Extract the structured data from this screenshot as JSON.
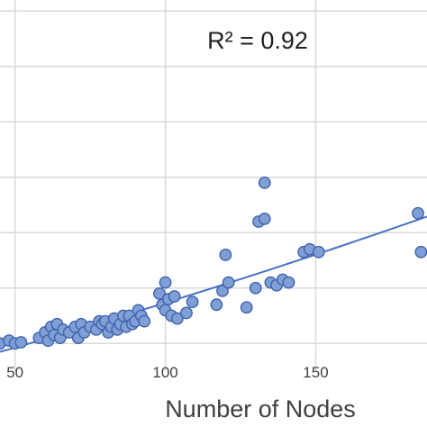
{
  "chart_data": {
    "type": "scatter",
    "xlabel": "Number of Nodes",
    "ylabel": "",
    "annotation": "R² = 0.92",
    "xlim": [
      45,
      187
    ],
    "ylim": [
      -0.5,
      6.2
    ],
    "x_ticks": [
      50,
      100,
      150
    ],
    "y_gridlines": [
      0,
      1,
      2,
      3,
      4,
      5,
      6
    ],
    "grid": true,
    "legend": "none",
    "colors": {
      "marker_fill": "#7f9fd5",
      "marker_stroke": "#3f63ad",
      "trendline": "#4a72c4",
      "grid": "#d9d9d9"
    },
    "trendline": {
      "type": "polynomial",
      "color": "#4a72c4"
    },
    "series": [
      {
        "points": [
          {
            "x": 45,
            "y": 0.0
          },
          {
            "x": 48,
            "y": 0.05
          },
          {
            "x": 50,
            "y": 0.0
          },
          {
            "x": 52,
            "y": 0.02
          },
          {
            "x": 58,
            "y": 0.1
          },
          {
            "x": 60,
            "y": 0.2
          },
          {
            "x": 61,
            "y": 0.05
          },
          {
            "x": 62,
            "y": 0.3
          },
          {
            "x": 63,
            "y": 0.15
          },
          {
            "x": 64,
            "y": 0.35
          },
          {
            "x": 65,
            "y": 0.1
          },
          {
            "x": 66,
            "y": 0.25
          },
          {
            "x": 68,
            "y": 0.2
          },
          {
            "x": 70,
            "y": 0.3
          },
          {
            "x": 71,
            "y": 0.1
          },
          {
            "x": 72,
            "y": 0.35
          },
          {
            "x": 73,
            "y": 0.2
          },
          {
            "x": 75,
            "y": 0.3
          },
          {
            "x": 77,
            "y": 0.25
          },
          {
            "x": 78,
            "y": 0.4
          },
          {
            "x": 79,
            "y": 0.35
          },
          {
            "x": 80,
            "y": 0.4
          },
          {
            "x": 81,
            "y": 0.2
          },
          {
            "x": 82,
            "y": 0.3
          },
          {
            "x": 83,
            "y": 0.45
          },
          {
            "x": 84,
            "y": 0.25
          },
          {
            "x": 85,
            "y": 0.35
          },
          {
            "x": 86,
            "y": 0.5
          },
          {
            "x": 87,
            "y": 0.3
          },
          {
            "x": 88,
            "y": 0.5
          },
          {
            "x": 89,
            "y": 0.35
          },
          {
            "x": 90,
            "y": 0.4
          },
          {
            "x": 91,
            "y": 0.6
          },
          {
            "x": 92,
            "y": 0.5
          },
          {
            "x": 93,
            "y": 0.4
          },
          {
            "x": 98,
            "y": 0.9
          },
          {
            "x": 99,
            "y": 0.7
          },
          {
            "x": 100,
            "y": 1.1
          },
          {
            "x": 100,
            "y": 0.6
          },
          {
            "x": 101,
            "y": 0.8
          },
          {
            "x": 102,
            "y": 0.5
          },
          {
            "x": 103,
            "y": 0.85
          },
          {
            "x": 104,
            "y": 0.45
          },
          {
            "x": 107,
            "y": 0.55
          },
          {
            "x": 109,
            "y": 0.75
          },
          {
            "x": 117,
            "y": 0.7
          },
          {
            "x": 119,
            "y": 0.95
          },
          {
            "x": 120,
            "y": 1.6
          },
          {
            "x": 121,
            "y": 1.1
          },
          {
            "x": 127,
            "y": 0.65
          },
          {
            "x": 130,
            "y": 1.0
          },
          {
            "x": 131,
            "y": 2.2
          },
          {
            "x": 133,
            "y": 2.25
          },
          {
            "x": 133,
            "y": 2.9
          },
          {
            "x": 135,
            "y": 1.1
          },
          {
            "x": 137,
            "y": 1.05
          },
          {
            "x": 139,
            "y": 1.15
          },
          {
            "x": 141,
            "y": 1.1
          },
          {
            "x": 146,
            "y": 1.65
          },
          {
            "x": 148,
            "y": 1.7
          },
          {
            "x": 151,
            "y": 1.65
          },
          {
            "x": 184,
            "y": 2.35
          },
          {
            "x": 185,
            "y": 1.65
          }
        ]
      }
    ]
  }
}
